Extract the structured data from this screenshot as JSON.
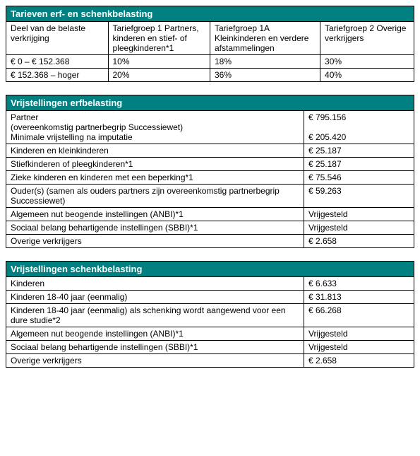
{
  "table1": {
    "title": "Tarieven erf- en schenkbelasting",
    "headers": [
      "Deel van de belaste verkrijging",
      "Tariefgroep 1 Partners, kinderen en stief- of pleegkinderen*1",
      "Tariefgroep 1A Kleinkinderen en verdere afstammelingen",
      "Tariefgroep 2 Overige verkrijgers"
    ],
    "rows": [
      [
        "€ 0 – € 152.368",
        "10%",
        "18%",
        "30%"
      ],
      [
        "€ 152.368 – hoger",
        "20%",
        "36%",
        "40%"
      ]
    ]
  },
  "table2": {
    "title": "Vrijstellingen erfbelasting",
    "rows": [
      [
        "Partner\n(overeenkomstig partnerbegrip Successiewet)\nMinimale vrijstelling na imputatie",
        "€ 795.156\n\n€ 205.420"
      ],
      [
        "Kinderen en kleinkinderen",
        "€ 25.187"
      ],
      [
        "Stiefkinderen of pleegkinderen*1",
        "€ 25.187"
      ],
      [
        "Zieke kinderen en kinderen met een beperking*1",
        "€ 75.546"
      ],
      [
        "Ouder(s) (samen als ouders partners zijn overeenkomstig partnerbegrip Successiewet)",
        "€ 59.263"
      ],
      [
        "Algemeen nut beogende instellingen (ANBI)*1",
        "Vrijgesteld"
      ],
      [
        "Sociaal belang behartigende instellingen (SBBI)*1",
        "Vrijgesteld"
      ],
      [
        "Overige verkrijgers",
        "€ 2.658"
      ]
    ]
  },
  "table3": {
    "title": "Vrijstellingen schenkbelasting",
    "rows": [
      [
        "Kinderen",
        "€ 6.633"
      ],
      [
        "Kinderen 18-40 jaar (eenmalig)",
        "€ 31.813"
      ],
      [
        "Kinderen 18-40 jaar (eenmalig) als schenking wordt aangewend voor een dure studie*2",
        "€ 66.268"
      ],
      [
        "Algemeen nut beogende instellingen (ANBI)*1",
        "Vrijgesteld"
      ],
      [
        "Sociaal belang behartigende instellingen (SBBI)*1",
        "Vrijgesteld"
      ],
      [
        "Overige verkrijgers",
        "€ 2.658"
      ]
    ]
  }
}
